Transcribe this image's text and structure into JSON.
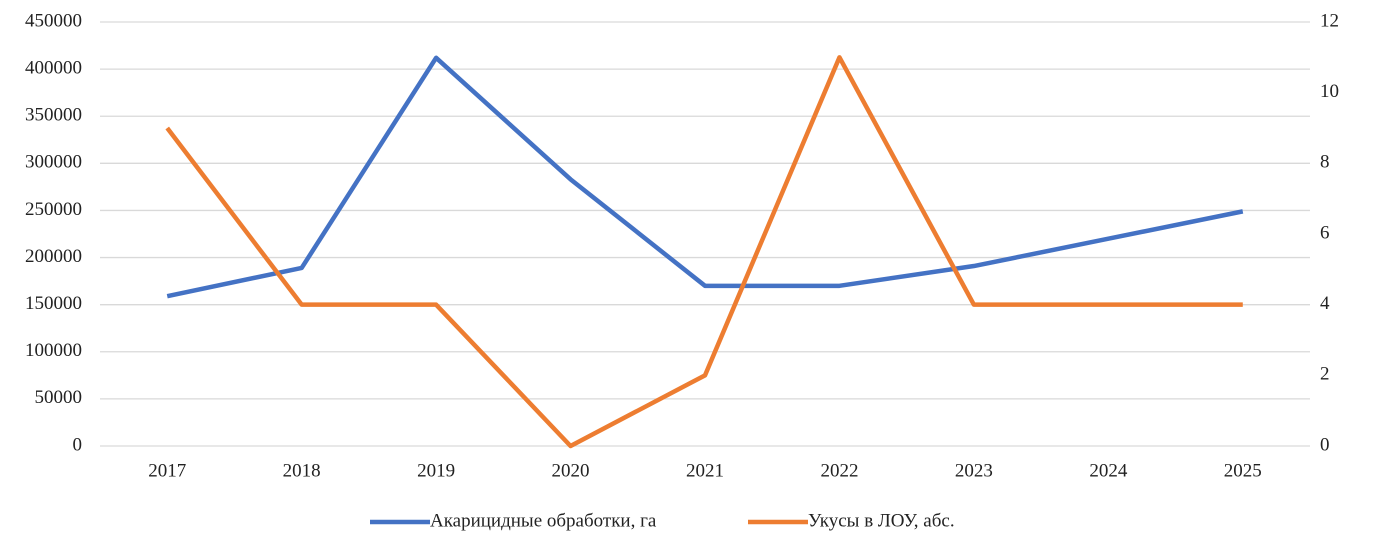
{
  "chart_data": {
    "type": "line",
    "categories": [
      "2017",
      "2018",
      "2019",
      "2020",
      "2021",
      "2022",
      "2023",
      "2024",
      "2025"
    ],
    "series": [
      {
        "name": "Акарицидные обработки, га",
        "color": "#4472c4",
        "values": [
          159000,
          189000,
          412000,
          283000,
          170000,
          170000,
          191000,
          220000,
          249000
        ]
      },
      {
        "name": "Укусы в ЛОУ, абс.",
        "color": "#ed7d31",
        "axis": "y2",
        "values": [
          9,
          4,
          4,
          0,
          2,
          11,
          4,
          4,
          4
        ]
      }
    ],
    "ylim": [
      0,
      450000
    ],
    "yticks": [
      0,
      50000,
      100000,
      150000,
      200000,
      250000,
      300000,
      350000,
      400000,
      450000
    ],
    "y2lim": [
      0,
      12
    ],
    "y2ticks": [
      0,
      2,
      4,
      6,
      8,
      10,
      12
    ],
    "grid": true,
    "legend": "bottom"
  }
}
